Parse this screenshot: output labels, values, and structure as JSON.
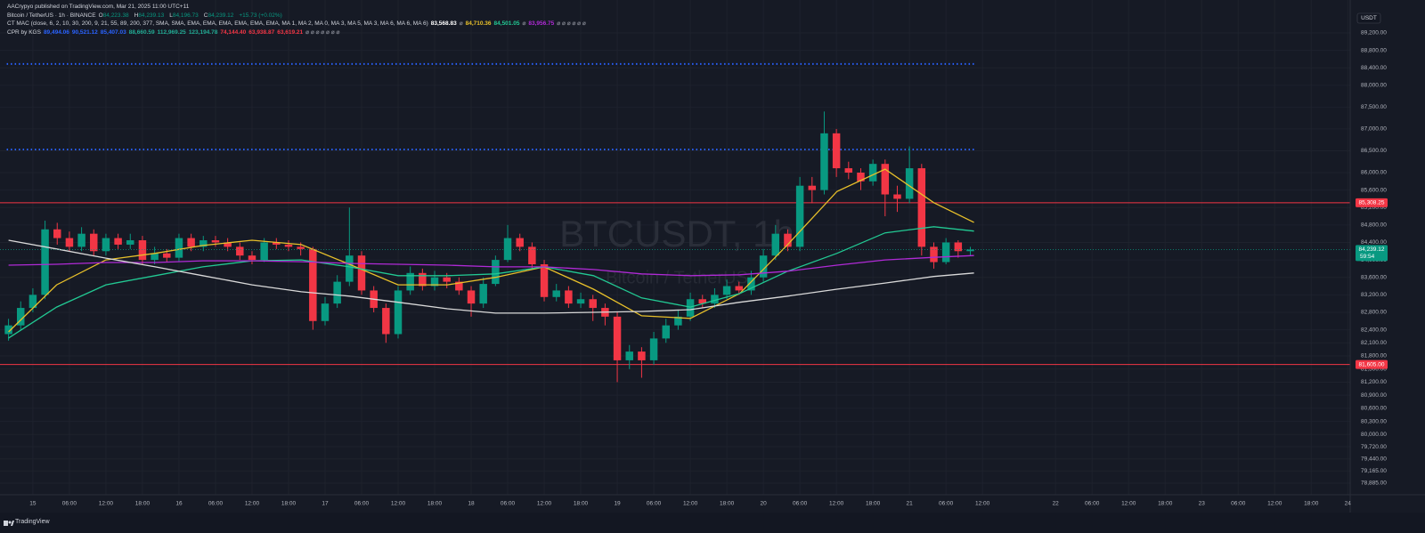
{
  "header": {
    "publisher": "AACrypyo published on TradingView.com, Mar 21, 2025 11:00 UTC+11",
    "symbol": "Bitcoin / TetherUS · 1h · BINANCE",
    "ohlc": [
      [
        "O",
        "84,223.38"
      ],
      [
        "H",
        "84,239.13"
      ],
      [
        "L",
        "84,196.73"
      ],
      [
        "C",
        "84,239.12"
      ]
    ],
    "change": "+15.73 (+0.02%)",
    "indicators": [
      {
        "name": "CT MAC (close, 6, 2, 10, 30, 200, 9, 21, 55, 89, 200, 377, SMA, SMA, EMA, EMA, EMA, EMA, EMA, EMA, MA 1, MA 2, MA 0, MA 3, MA 5, MA 3, MA 6, MA 6, MA 6)",
        "values": [
          {
            "text": "83,568.83",
            "color": "#ffffff"
          },
          {
            "text": "⌀",
            "color": "#787b86"
          },
          {
            "text": "84,710.36",
            "color": "#e8c02a"
          },
          {
            "text": "84,501.05",
            "color": "#22c993"
          },
          {
            "text": "⌀",
            "color": "#787b86"
          },
          {
            "text": "83,956.75",
            "color": "#b02ad6"
          },
          {
            "text": "⌀ ⌀ ⌀ ⌀ ⌀ ⌀",
            "color": "#787b86"
          }
        ]
      },
      {
        "name": "CPR by KGS",
        "values": [
          {
            "text": "89,494.06",
            "color": "#2962ff"
          },
          {
            "text": "90,521.12",
            "color": "#2962ff"
          },
          {
            "text": "85,407.03",
            "color": "#2962ff"
          },
          {
            "text": "88,660.59",
            "color": "#22ab94"
          },
          {
            "text": "112,969.25",
            "color": "#22ab94"
          },
          {
            "text": "123,194.78",
            "color": "#22ab94"
          },
          {
            "text": "74,144.40",
            "color": "#f23645"
          },
          {
            "text": "63,938.87",
            "color": "#f23645"
          },
          {
            "text": "63,619.21",
            "color": "#f23645"
          },
          {
            "text": "⌀ ⌀ ⌀ ⌀ ⌀ ⌀ ⌀",
            "color": "#787b86"
          }
        ]
      }
    ]
  },
  "footer": "TradingView",
  "chart_data": {
    "type": "candlestick",
    "currency": "USDT",
    "watermark": "BTCUSDT, 1h",
    "watermark_subtitle": "Bitcoin / TetherUS",
    "up_color": "#089981",
    "down_color": "#f23645",
    "x": [
      -4,
      -2,
      0,
      2,
      4,
      6,
      8,
      10,
      12,
      14,
      16,
      18,
      20,
      22,
      24,
      26,
      28,
      30,
      32,
      34,
      36,
      38,
      40,
      42,
      44,
      46,
      48,
      50,
      52,
      54,
      56,
      58,
      60,
      62,
      64,
      66,
      68,
      70,
      72,
      74,
      76,
      78,
      80,
      82,
      84,
      86,
      88,
      90,
      92,
      94,
      96,
      98,
      100,
      102,
      104,
      106,
      108,
      110,
      112,
      114,
      116,
      118,
      120,
      122,
      124,
      126,
      128,
      130,
      132,
      134,
      136,
      138,
      140,
      142,
      144,
      146,
      148,
      150,
      152,
      154
    ],
    "open": [
      82300,
      82500,
      82900,
      83200,
      84700,
      84500,
      84300,
      84600,
      84200,
      84500,
      84350,
      84450,
      84000,
      84150,
      84050,
      84500,
      84300,
      84450,
      84400,
      84300,
      84100,
      84000,
      84400,
      84350,
      84300,
      84250,
      82600,
      83000,
      83500,
      84100,
      83300,
      82900,
      82300,
      83300,
      83700,
      83400,
      83600,
      83500,
      83300,
      83000,
      83450,
      84000,
      84500,
      84300,
      83900,
      83150,
      83300,
      83000,
      83100,
      82900,
      82700,
      81700,
      81900,
      81700,
      82200,
      82500,
      82700,
      83100,
      83000,
      83200,
      83400,
      83300,
      83600,
      84100,
      84600,
      84300,
      85700,
      85600,
      86900,
      86100,
      86000,
      85800,
      86200,
      85500,
      85400,
      86100,
      84300,
      83950,
      84400,
      84200
    ],
    "high": [
      82650,
      83050,
      83350,
      84900,
      84850,
      84650,
      84750,
      84700,
      84600,
      84600,
      84600,
      84550,
      84300,
      84250,
      84600,
      84600,
      84550,
      84550,
      84500,
      84400,
      84200,
      84500,
      84500,
      84450,
      84400,
      84300,
      83150,
      83650,
      85200,
      84200,
      83400,
      83000,
      83400,
      83850,
      83800,
      83750,
      83700,
      83600,
      83400,
      83600,
      84100,
      84800,
      84600,
      84400,
      84000,
      83450,
      83400,
      83250,
      83200,
      83000,
      82800,
      82050,
      82000,
      82350,
      82650,
      82850,
      83250,
      83200,
      83350,
      83550,
      83500,
      83750,
      84250,
      84800,
      84700,
      85900,
      85900,
      87400,
      87000,
      86250,
      86100,
      86300,
      86300,
      85700,
      86600,
      86200,
      84400,
      84500,
      84450,
      84300
    ],
    "low": [
      82150,
      82400,
      82800,
      83100,
      84350,
      84200,
      84200,
      84100,
      84100,
      84250,
      84250,
      83900,
      83900,
      83950,
      83950,
      84200,
      84200,
      84300,
      84200,
      84000,
      83900,
      83950,
      84250,
      84200,
      84100,
      82400,
      82500,
      82900,
      83400,
      83200,
      82800,
      82100,
      82200,
      83200,
      83300,
      83300,
      83350,
      83200,
      82700,
      82900,
      83400,
      83950,
      84200,
      83800,
      83050,
      83050,
      82900,
      82900,
      82600,
      82500,
      81200,
      81500,
      81300,
      81600,
      82100,
      82400,
      82600,
      82900,
      82900,
      83100,
      83200,
      83200,
      83500,
      84000,
      84200,
      84200,
      85300,
      85500,
      85900,
      85850,
      85600,
      85700,
      85000,
      85100,
      85300,
      84100,
      83800,
      83900,
      84050,
      84100
    ],
    "close": [
      82500,
      82900,
      83200,
      84700,
      84500,
      84300,
      84600,
      84200,
      84500,
      84350,
      84450,
      84000,
      84150,
      84050,
      84500,
      84300,
      84450,
      84400,
      84300,
      84100,
      84000,
      84400,
      84350,
      84300,
      84250,
      82600,
      83000,
      83500,
      84100,
      83300,
      82900,
      82300,
      83300,
      83700,
      83400,
      83600,
      83500,
      83300,
      83000,
      83450,
      84000,
      84500,
      84300,
      83900,
      83150,
      83300,
      83000,
      83100,
      82900,
      82700,
      81700,
      81900,
      81700,
      82200,
      82500,
      82700,
      83100,
      83000,
      83200,
      83400,
      83300,
      83600,
      84100,
      84600,
      84300,
      85700,
      85600,
      86900,
      86100,
      86000,
      85800,
      86200,
      85500,
      85400,
      86100,
      84300,
      83950,
      84400,
      84200,
      84239.12
    ],
    "lines": [
      {
        "color": "#e8c02a",
        "x": [
          -4.0,
          3.9,
          12.0,
          20.1,
          27.9,
          36.0,
          44.1,
          52.0,
          60.0,
          68.1,
          76.0,
          84.0,
          92.1,
          100.0,
          108.0,
          116.1,
          124.0,
          132.1,
          140.0,
          148.0,
          154.6
        ],
        "values": [
          82350,
          83430,
          84000,
          84150,
          84330,
          84450,
          84350,
          83900,
          83430,
          83430,
          83600,
          83840,
          83330,
          82720,
          82660,
          83230,
          84350,
          85570,
          86080,
          85310,
          84860
        ]
      },
      {
        "color": "#22c993",
        "x": [
          -4.0,
          3.9,
          12.0,
          20.1,
          27.9,
          36.0,
          44.1,
          52.0,
          60.0,
          68.1,
          76.0,
          84.0,
          92.1,
          100.0,
          108.0,
          116.1,
          124.0,
          132.1,
          140.0,
          148.0,
          154.6
        ],
        "values": [
          82210,
          82920,
          83430,
          83640,
          83840,
          83980,
          84000,
          83840,
          83640,
          83640,
          83680,
          83840,
          83640,
          83130,
          82920,
          83230,
          83740,
          84150,
          84620,
          84760,
          84660
        ]
      },
      {
        "color": "#b02ad6",
        "x": [
          -4.0,
          3.9,
          12.0,
          20.1,
          27.9,
          36.0,
          44.1,
          52.0,
          60.0,
          68.1,
          76.0,
          84.0,
          92.1,
          100.0,
          108.0,
          116.1,
          124.0,
          132.1,
          140.0,
          148.0,
          154.6
        ],
        "values": [
          83880,
          83900,
          83940,
          83940,
          83980,
          83980,
          83960,
          83920,
          83900,
          83880,
          83840,
          83840,
          83780,
          83680,
          83640,
          83660,
          83740,
          83880,
          84000,
          84060,
          84100
        ]
      },
      {
        "color": "#d9d9d9",
        "x": [
          -4.0,
          3.9,
          12.0,
          20.1,
          27.9,
          36.0,
          44.1,
          52.0,
          60.0,
          68.1,
          76.0,
          84.0,
          92.1,
          100.0,
          108.0,
          116.1,
          124.0,
          132.1,
          140.0,
          148.0,
          154.6
        ],
        "values": [
          84450,
          84250,
          84040,
          83840,
          83640,
          83430,
          83270,
          83170,
          83030,
          82880,
          82780,
          82780,
          82800,
          82820,
          82860,
          83030,
          83170,
          83330,
          83470,
          83620,
          83700
        ]
      }
    ],
    "levels": [
      {
        "value": 85308.25,
        "label": "85,308.25",
        "color": "#f23645",
        "style": "solid"
      },
      {
        "value": 81605,
        "label": "81,605.00",
        "color": "#f23645",
        "style": "solid"
      },
      {
        "value": 88490,
        "color": "#2962ff",
        "style": "dotted"
      },
      {
        "value": 86530,
        "color": "#2962ff",
        "style": "dotted"
      }
    ],
    "last": {
      "value": 84239.12,
      "label": "84,239.12",
      "countdown": "59:54"
    },
    "ylim": [
      78620,
      89710
    ],
    "yticks": [
      {
        "value": 89200,
        "label": "89,200.00"
      },
      {
        "value": 88800,
        "label": "88,800.00"
      },
      {
        "value": 88400,
        "label": "88,400.00"
      },
      {
        "value": 88000,
        "label": "88,000.00"
      },
      {
        "value": 87500,
        "label": "87,500.00"
      },
      {
        "value": 87000,
        "label": "87,000.00"
      },
      {
        "value": 86500,
        "label": "86,500.00"
      },
      {
        "value": 86000,
        "label": "86,000.00"
      },
      {
        "value": 85600,
        "label": "85,600.00"
      },
      {
        "value": 85200,
        "label": "85,200.00"
      },
      {
        "value": 84800,
        "label": "84,800.00"
      },
      {
        "value": 84400,
        "label": "84,400.00"
      },
      {
        "value": 84000,
        "label": "84,000.00"
      },
      {
        "value": 83600,
        "label": "83,600.00"
      },
      {
        "value": 83200,
        "label": "83,200.00"
      },
      {
        "value": 82800,
        "label": "82,800.00"
      },
      {
        "value": 82400,
        "label": "82,400.00"
      },
      {
        "value": 82100,
        "label": "82,100.00"
      },
      {
        "value": 81800,
        "label": "81,800.00"
      },
      {
        "value": 81500,
        "label": "81,500.00"
      },
      {
        "value": 81200,
        "label": "81,200.00"
      },
      {
        "value": 80900,
        "label": "80,900.00"
      },
      {
        "value": 80600,
        "label": "80,600.00"
      },
      {
        "value": 80300,
        "label": "80,300.00"
      },
      {
        "value": 80000,
        "label": "80,000.00"
      },
      {
        "value": 79720,
        "label": "79,720.00"
      },
      {
        "value": 79440,
        "label": "79,440.00"
      },
      {
        "value": 79165,
        "label": "79,165.00"
      },
      {
        "value": 78885,
        "label": "78,885.00"
      }
    ],
    "xlim": [
      -5.4,
      216.4
    ],
    "xticks": [
      {
        "value": 0,
        "label": "15"
      },
      {
        "value": 6,
        "label": "06:00"
      },
      {
        "value": 12,
        "label": "12:00"
      },
      {
        "value": 18,
        "label": "18:00"
      },
      {
        "value": 24,
        "label": "16"
      },
      {
        "value": 30,
        "label": "06:00"
      },
      {
        "value": 36,
        "label": "12:00"
      },
      {
        "value": 42,
        "label": "18:00"
      },
      {
        "value": 48,
        "label": "17"
      },
      {
        "value": 54,
        "label": "06:00"
      },
      {
        "value": 60,
        "label": "12:00"
      },
      {
        "value": 66,
        "label": "18:00"
      },
      {
        "value": 72,
        "label": "18"
      },
      {
        "value": 78,
        "label": "06:00"
      },
      {
        "value": 84,
        "label": "12:00"
      },
      {
        "value": 90,
        "label": "18:00"
      },
      {
        "value": 96,
        "label": "19"
      },
      {
        "value": 102,
        "label": "06:00"
      },
      {
        "value": 108,
        "label": "12:00"
      },
      {
        "value": 114,
        "label": "18:00"
      },
      {
        "value": 120,
        "label": "20"
      },
      {
        "value": 126,
        "label": "06:00"
      },
      {
        "value": 132,
        "label": "12:00"
      },
      {
        "value": 138,
        "label": "18:00"
      },
      {
        "value": 144,
        "label": "21"
      },
      {
        "value": 150,
        "label": "06:00"
      },
      {
        "value": 156,
        "label": "12:00"
      },
      {
        "value": 168,
        "label": "22"
      },
      {
        "value": 174,
        "label": "06:00"
      },
      {
        "value": 180,
        "label": "12:00"
      },
      {
        "value": 186,
        "label": "18:00"
      },
      {
        "value": 192,
        "label": "23"
      },
      {
        "value": 198,
        "label": "06:00"
      },
      {
        "value": 204,
        "label": "12:00"
      },
      {
        "value": 210,
        "label": "18:00"
      },
      {
        "value": 216,
        "label": "24"
      }
    ],
    "grid": true
  }
}
